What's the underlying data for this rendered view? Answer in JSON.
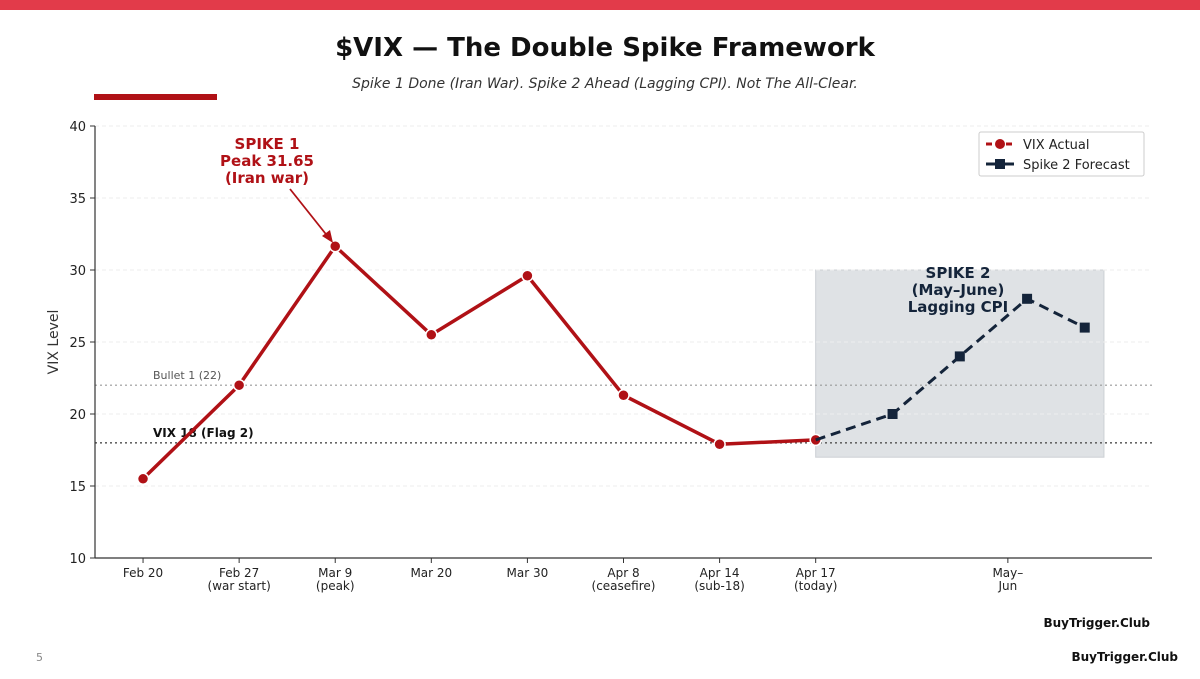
{
  "page": {
    "number": "5",
    "footer_brand": "BuyTrigger.Club",
    "accent_bar_color": "#e23b4a"
  },
  "chart_data": {
    "type": "line",
    "title": "$VIX — The Double Spike Framework",
    "subtitle": "Spike 1 Done (Iran War). Spike 2 Ahead (Lagging CPI). Not The All-Clear.",
    "ylabel": "VIX Level",
    "xlabel": "",
    "ylim": [
      10,
      40
    ],
    "yticks": [
      10,
      15,
      20,
      25,
      30,
      35,
      40
    ],
    "xlim": [
      -0.5,
      10.5
    ],
    "xticks": [
      {
        "x": 0,
        "label": [
          "Feb 20"
        ]
      },
      {
        "x": 1,
        "label": [
          "Feb 27",
          "(war start)"
        ]
      },
      {
        "x": 2,
        "label": [
          "Mar 9",
          "(peak)"
        ]
      },
      {
        "x": 3,
        "label": [
          "Mar 20"
        ]
      },
      {
        "x": 4,
        "label": [
          "Mar 30"
        ]
      },
      {
        "x": 5,
        "label": [
          "Apr 8",
          "(ceasefire)"
        ]
      },
      {
        "x": 6,
        "label": [
          "Apr 14",
          "(sub-18)"
        ]
      },
      {
        "x": 7,
        "label": [
          "Apr 17",
          "(today)"
        ]
      },
      {
        "x": 9,
        "label": [
          "May–",
          "Jun"
        ]
      }
    ],
    "grid": "horizontal",
    "legend_position": "top-right",
    "series": [
      {
        "name": "VIX Actual",
        "color": "#b01116",
        "marker": "circle",
        "style": "solid",
        "x": [
          0,
          1,
          2,
          3,
          4,
          5,
          6,
          7
        ],
        "y": [
          15.5,
          22,
          31.65,
          25.5,
          29.6,
          21.3,
          17.9,
          18.2
        ]
      },
      {
        "name": "Spike 2 Forecast",
        "color": "#14243a",
        "marker": "square",
        "style": "dashed",
        "x": [
          7,
          7.8,
          8.5,
          9.2,
          9.8
        ],
        "y": [
          18.2,
          20,
          24,
          28,
          26
        ]
      }
    ],
    "reference_lines": [
      {
        "y": 22,
        "label": "Bullet 1 (22)",
        "color": "#999999"
      },
      {
        "y": 18,
        "label": "VIX 18 (Flag 2)",
        "color": "#666666"
      }
    ],
    "shaded_region": {
      "x": [
        7,
        10
      ],
      "y": [
        17,
        30
      ],
      "color": "#dfe2e5"
    },
    "annotations": [
      {
        "lines": [
          "SPIKE 1",
          "Peak 31.65",
          "(Iran war)"
        ],
        "color": "#b01116",
        "points_to": {
          "x": 2,
          "y": 31.65
        }
      },
      {
        "lines": [
          "SPIKE 2",
          "(May–June)",
          "Lagging CPI"
        ],
        "color": "#14243a"
      }
    ],
    "watermark": "BuyTrigger.Club"
  }
}
